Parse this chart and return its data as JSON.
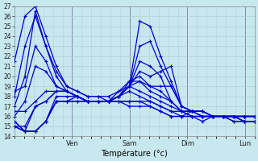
{
  "title": "Température (°c)",
  "background_color": "#c8e8f0",
  "grid_color": "#b0d0d8",
  "line_color": "#0000cc",
  "marker": "+",
  "ylim": [
    14,
    27
  ],
  "yticks": [
    14,
    15,
    16,
    17,
    18,
    19,
    20,
    21,
    22,
    23,
    24,
    25,
    26,
    27
  ],
  "day_labels": [
    "Ven",
    "Sam",
    "Dim",
    "Lun"
  ],
  "day_positions": [
    24,
    48,
    72,
    96
  ],
  "xlim": [
    0,
    100
  ],
  "series": [
    [
      21.5,
      26.0,
      27.0,
      24.0,
      21.0,
      19.0,
      18.5,
      18.0,
      18.0,
      18.0,
      18.5,
      19.0,
      19.5,
      18.5,
      18.0,
      17.5,
      16.5,
      16.0,
      15.5,
      16.0,
      16.0,
      15.5,
      15.5,
      15.5
    ],
    [
      18.0,
      23.0,
      26.0,
      23.0,
      20.5,
      19.0,
      18.5,
      18.0,
      18.0,
      17.5,
      18.0,
      18.5,
      18.0,
      17.5,
      17.0,
      16.5,
      16.0,
      16.0,
      16.0,
      16.0,
      16.0,
      15.5,
      15.5,
      15.5
    ],
    [
      17.0,
      20.0,
      26.5,
      23.0,
      20.0,
      18.5,
      18.0,
      17.5,
      17.5,
      17.5,
      18.0,
      19.5,
      20.0,
      19.0,
      18.5,
      17.5,
      16.5,
      16.0,
      16.0,
      16.0,
      16.0,
      16.0,
      16.0,
      16.0
    ],
    [
      18.5,
      19.0,
      23.0,
      21.5,
      19.0,
      18.5,
      18.0,
      17.5,
      17.5,
      17.5,
      18.0,
      19.0,
      25.5,
      25.0,
      22.0,
      19.5,
      17.0,
      16.5,
      16.5,
      16.0,
      16.0,
      16.0,
      16.0,
      16.0
    ],
    [
      16.0,
      17.5,
      21.0,
      20.5,
      19.0,
      18.5,
      18.0,
      17.5,
      17.5,
      17.5,
      18.0,
      19.0,
      23.0,
      23.5,
      21.0,
      19.0,
      17.0,
      16.5,
      16.5,
      16.0,
      16.0,
      16.0,
      16.0,
      16.0
    ],
    [
      16.5,
      16.5,
      17.5,
      18.5,
      18.5,
      18.5,
      18.0,
      17.5,
      17.5,
      17.5,
      18.0,
      19.0,
      21.5,
      21.0,
      20.0,
      17.5,
      16.5,
      16.5,
      16.5,
      16.0,
      16.0,
      16.0,
      16.0,
      16.0
    ],
    [
      15.0,
      15.0,
      17.0,
      17.5,
      18.5,
      18.5,
      18.0,
      17.5,
      17.5,
      17.5,
      18.0,
      19.0,
      20.5,
      20.0,
      20.5,
      21.0,
      17.0,
      16.5,
      16.5,
      16.0,
      16.0,
      16.0,
      16.0,
      16.0
    ],
    [
      15.5,
      14.5,
      17.0,
      17.5,
      18.5,
      18.5,
      18.0,
      17.5,
      17.5,
      17.5,
      18.5,
      19.5,
      19.5,
      19.0,
      19.0,
      19.0,
      17.0,
      16.5,
      16.5,
      16.0,
      16.0,
      16.0,
      16.0,
      16.0
    ],
    [
      15.0,
      14.5,
      14.5,
      15.5,
      18.0,
      18.0,
      18.0,
      17.5,
      17.5,
      17.5,
      18.0,
      19.0,
      18.5,
      18.0,
      17.5,
      17.0,
      16.5,
      16.5,
      16.0,
      16.0,
      16.0,
      16.0,
      16.0,
      16.0
    ],
    [
      15.5,
      14.5,
      14.5,
      15.5,
      17.5,
      17.5,
      18.0,
      17.5,
      17.5,
      17.5,
      17.5,
      17.5,
      17.5,
      17.5,
      17.0,
      16.5,
      16.5,
      16.5,
      16.0,
      16.0,
      16.0,
      16.0,
      15.5,
      15.5
    ],
    [
      15.0,
      14.5,
      14.5,
      15.5,
      17.5,
      17.5,
      17.5,
      17.5,
      17.5,
      17.5,
      17.5,
      17.5,
      17.5,
      17.0,
      16.5,
      16.0,
      16.0,
      16.5,
      16.0,
      16.0,
      16.0,
      16.0,
      15.5,
      15.5
    ],
    [
      15.0,
      14.5,
      14.5,
      15.5,
      17.5,
      17.5,
      17.5,
      17.5,
      17.5,
      17.5,
      17.5,
      17.0,
      17.0,
      17.0,
      16.5,
      16.0,
      16.0,
      16.0,
      16.0,
      16.0,
      16.0,
      16.0,
      15.5,
      15.5
    ]
  ]
}
